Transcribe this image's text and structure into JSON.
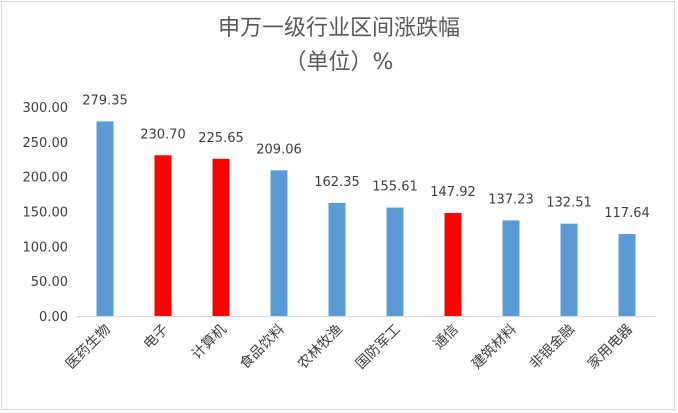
{
  "chart_data": {
    "type": "bar",
    "title": "申万一级行业区间涨跌幅",
    "subtitle": "（单位）%",
    "categories": [
      "医药生物",
      "电子",
      "计算机",
      "食品饮料",
      "农林牧渔",
      "国防军工",
      "通信",
      "建筑材料",
      "非银金融",
      "家用电器"
    ],
    "values": [
      279.35,
      230.7,
      225.65,
      209.06,
      162.35,
      155.61,
      147.92,
      137.23,
      132.51,
      117.64
    ],
    "value_labels": [
      "279.35",
      "230.70",
      "225.65",
      "209.06",
      "162.35",
      "155.61",
      "147.92",
      "137.23",
      "132.51",
      "117.64"
    ],
    "bar_colors": [
      "#5b9bd5",
      "#ff0000",
      "#ff0000",
      "#5b9bd5",
      "#5b9bd5",
      "#5b9bd5",
      "#ff0000",
      "#5b9bd5",
      "#5b9bd5",
      "#5b9bd5"
    ],
    "y_ticks": [
      "0.00",
      "50.00",
      "100.00",
      "150.00",
      "200.00",
      "250.00",
      "300.00"
    ],
    "ylim": [
      0,
      300
    ],
    "grid": false,
    "legend": "none",
    "axis_color": "#d9d9d9",
    "text_color": "#404040",
    "title_color": "#595959"
  }
}
